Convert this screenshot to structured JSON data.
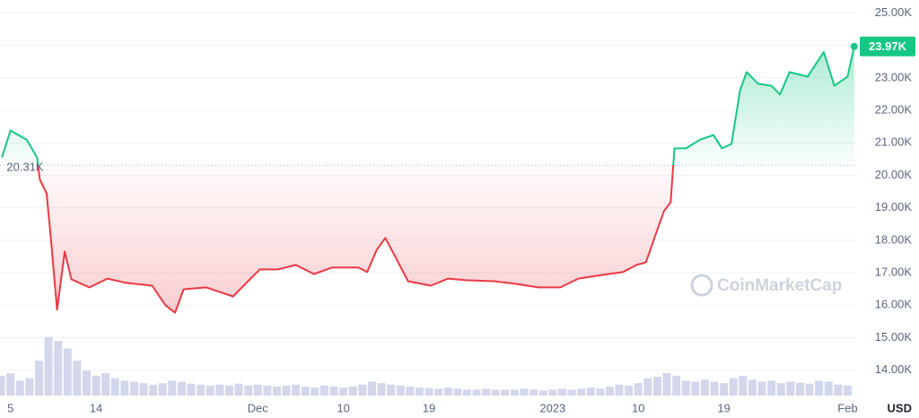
{
  "chart_data": {
    "type": "line",
    "x": [
      -0.9,
      0,
      1.7,
      2.8,
      3.1,
      3.8,
      4.3,
      4.9,
      5.7,
      6.4,
      8.3,
      10.2,
      12.1,
      14.9,
      16.3,
      17.3,
      18.2,
      20.6,
      23.4,
      24.8,
      26.2,
      28.1,
      30.0,
      31.9,
      33.8,
      36.6,
      37.5,
      38.5,
      39.4,
      40.4,
      41.8,
      44.2,
      46.0,
      47.9,
      50.8,
      53.1,
      55.5,
      57.8,
      59.7,
      62.1,
      64.4,
      65.8,
      66.8,
      67.7,
      68.7,
      69.4,
      69.8,
      71.0,
      72.5,
      73.9,
      74.8,
      75.8,
      76.7,
      77.4,
      78.6,
      80.0,
      80.9,
      81.9,
      83.8,
      85.5,
      86.6,
      88.0,
      88.7
    ],
    "values": [
      20550,
      21380,
      21100,
      20550,
      19860,
      19450,
      17900,
      15860,
      17650,
      16800,
      16550,
      16820,
      16690,
      16600,
      16000,
      15770,
      16490,
      16550,
      16270,
      16690,
      17100,
      17100,
      17240,
      16960,
      17160,
      17160,
      17020,
      17700,
      18070,
      17520,
      16740,
      16600,
      16820,
      16770,
      16740,
      16660,
      16550,
      16550,
      16820,
      16930,
      17020,
      17240,
      17320,
      18070,
      18900,
      19170,
      20830,
      20830,
      21100,
      21240,
      20830,
      20970,
      22620,
      23180,
      22820,
      22760,
      22490,
      23180,
      23040,
      23800,
      22760,
      23040,
      23970
    ],
    "value_labels": [
      null,
      null,
      null,
      null,
      null,
      null,
      null,
      null,
      null,
      null,
      null,
      null,
      null,
      null,
      null,
      null,
      null,
      null,
      null,
      null,
      null,
      null,
      null,
      null,
      null,
      null,
      null,
      null,
      null,
      null,
      null,
      null,
      null,
      null,
      null,
      null,
      null,
      null,
      null,
      null,
      null,
      null,
      null,
      null,
      null,
      null,
      null,
      null,
      null,
      null,
      null,
      null,
      null,
      null,
      null,
      null,
      null,
      null,
      null,
      null,
      null,
      null,
      "23.97K"
    ],
    "color_above": "#16c784",
    "color_below": "#ea3943",
    "baseline": {
      "value": 20310,
      "label": "20.31K"
    },
    "xlim": [
      -1.1,
      89
    ],
    "xticks": [
      {
        "value": 0,
        "label": "5"
      },
      {
        "value": 9,
        "label": "14"
      },
      {
        "value": 26,
        "label": "Dec"
      },
      {
        "value": 35,
        "label": "10"
      },
      {
        "value": 44,
        "label": "19"
      },
      {
        "value": 57,
        "label": "2023"
      },
      {
        "value": 66,
        "label": "10"
      },
      {
        "value": 75,
        "label": "19"
      },
      {
        "value": 88,
        "label": "Feb"
      }
    ],
    "ylim": [
      13300,
      25400
    ],
    "yticks": [
      {
        "value": 25000,
        "label": "25.00K"
      },
      {
        "value": 24000,
        "label": "24.00K"
      },
      {
        "value": 23000,
        "label": "23.00K"
      },
      {
        "value": 22000,
        "label": "22.00K"
      },
      {
        "value": 21000,
        "label": "21.00K"
      },
      {
        "value": 20000,
        "label": "20.00K"
      },
      {
        "value": 19000,
        "label": "19.00K"
      },
      {
        "value": 18000,
        "label": "18.00K"
      },
      {
        "value": 17000,
        "label": "17.00K"
      },
      {
        "value": 16000,
        "label": "16.00K"
      },
      {
        "value": 15000,
        "label": "15.00K"
      },
      {
        "value": 14000,
        "label": "14.00K"
      }
    ],
    "grid": true,
    "currency": "USD",
    "watermark": "CoinMarketCap",
    "volume": {
      "axis": "y2",
      "color": "#d3d7ec",
      "x": [
        -1,
        0,
        1,
        2,
        3,
        4,
        5,
        6,
        7,
        8,
        9,
        10,
        11,
        12,
        13,
        14,
        15,
        16,
        17,
        18,
        19,
        20,
        21,
        22,
        23,
        24,
        25,
        26,
        27,
        28,
        29,
        30,
        31,
        32,
        33,
        34,
        35,
        36,
        37,
        38,
        39,
        40,
        41,
        42,
        43,
        44,
        45,
        46,
        47,
        48,
        49,
        50,
        51,
        52,
        53,
        54,
        55,
        56,
        57,
        58,
        59,
        60,
        61,
        62,
        63,
        64,
        65,
        66,
        67,
        68,
        69,
        70,
        71,
        72,
        73,
        74,
        75,
        76,
        77,
        78,
        79,
        80,
        81,
        82,
        83,
        84,
        85,
        86,
        87,
        88
      ],
      "values": [
        40,
        45,
        30,
        35,
        70,
        118,
        110,
        95,
        70,
        50,
        40,
        45,
        35,
        30,
        28,
        25,
        22,
        25,
        30,
        28,
        24,
        22,
        20,
        22,
        20,
        24,
        20,
        22,
        20,
        18,
        20,
        22,
        18,
        16,
        20,
        18,
        16,
        18,
        22,
        28,
        25,
        22,
        20,
        18,
        16,
        15,
        14,
        16,
        14,
        12,
        12,
        14,
        12,
        12,
        12,
        14,
        12,
        10,
        12,
        14,
        12,
        14,
        16,
        14,
        18,
        22,
        20,
        25,
        35,
        38,
        45,
        40,
        30,
        28,
        32,
        28,
        25,
        35,
        40,
        32,
        28,
        30,
        25,
        28,
        26,
        24,
        30,
        28,
        22,
        20
      ]
    },
    "y2lim": [
      0,
      150
    ]
  }
}
